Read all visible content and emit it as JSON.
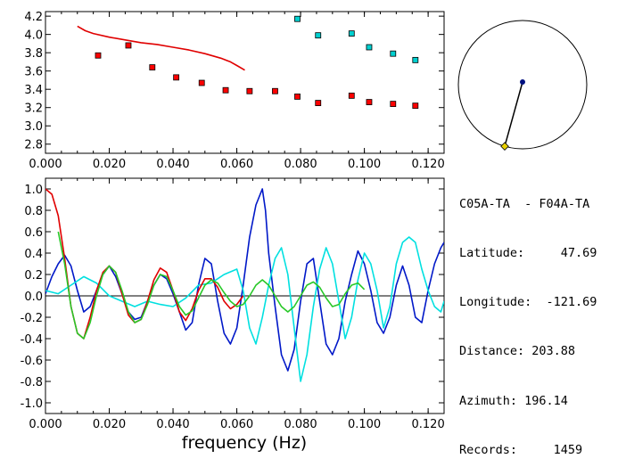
{
  "chart_data": [
    {
      "type": "scatter",
      "xlim": [
        0.0,
        0.125
      ],
      "ylim": [
        2.7,
        4.25
      ],
      "x_ticks": [
        "0.000",
        "0.020",
        "0.040",
        "0.060",
        "0.080",
        "0.100",
        "0.120"
      ],
      "y_ticks": [
        "4.2",
        "4.0",
        "3.8",
        "3.6",
        "3.4",
        "3.2",
        "3.0",
        "2.8"
      ],
      "series": [
        {
          "color": "#ff0000",
          "marker": "square",
          "x": [
            0.0165,
            0.026,
            0.0335,
            0.041,
            0.049,
            0.0565,
            0.064,
            0.072,
            0.079,
            0.0855,
            0.096,
            0.1015,
            0.109,
            0.116
          ],
          "y": [
            3.77,
            3.88,
            3.64,
            3.53,
            3.47,
            3.39,
            3.38,
            3.38,
            3.32,
            3.25,
            3.33,
            3.26,
            3.24,
            3.22
          ]
        },
        {
          "color": "#00d0d0",
          "marker": "square",
          "x": [
            0.079,
            0.0855,
            0.096,
            0.1015,
            0.109,
            0.116
          ],
          "y": [
            4.17,
            3.99,
            4.01,
            3.86,
            3.79,
            3.72
          ]
        },
        {
          "color": "#e00000",
          "marker": "line",
          "x": [
            0.01,
            0.0125,
            0.015,
            0.02,
            0.025,
            0.03,
            0.035,
            0.04,
            0.045,
            0.05,
            0.055,
            0.058,
            0.06,
            0.0625
          ],
          "y": [
            4.09,
            4.04,
            4.01,
            3.97,
            3.94,
            3.91,
            3.89,
            3.86,
            3.83,
            3.79,
            3.74,
            3.7,
            3.66,
            3.61
          ]
        }
      ]
    },
    {
      "type": "line",
      "xlim": [
        0.0,
        0.125
      ],
      "ylim": [
        -1.1,
        1.1
      ],
      "xlabel": "frequency (Hz)",
      "x_ticks": [
        "0.000",
        "0.020",
        "0.040",
        "0.060",
        "0.080",
        "0.100",
        "0.120"
      ],
      "y_ticks": [
        "1.0",
        "0.8",
        "0.6",
        "0.4",
        "0.2",
        "0.0",
        "-0.2",
        "-0.4",
        "-0.6",
        "-0.8",
        "-1.0"
      ],
      "series": [
        {
          "color": "#0018c8",
          "x": [
            0.0,
            0.002,
            0.004,
            0.006,
            0.008,
            0.01,
            0.012,
            0.014,
            0.016,
            0.018,
            0.02,
            0.022,
            0.024,
            0.026,
            0.028,
            0.03,
            0.032,
            0.034,
            0.036,
            0.038,
            0.04,
            0.042,
            0.044,
            0.046,
            0.048,
            0.05,
            0.052,
            0.054,
            0.056,
            0.058,
            0.06,
            0.062,
            0.064,
            0.066,
            0.068,
            0.069,
            0.07,
            0.072,
            0.074,
            0.076,
            0.078,
            0.08,
            0.082,
            0.084,
            0.086,
            0.088,
            0.09,
            0.092,
            0.094,
            0.096,
            0.098,
            0.1,
            0.102,
            0.104,
            0.106,
            0.108,
            0.11,
            0.112,
            0.114,
            0.116,
            0.118,
            0.12,
            0.122,
            0.124,
            0.125
          ],
          "y": [
            0.02,
            0.18,
            0.3,
            0.38,
            0.28,
            0.05,
            -0.15,
            -0.1,
            0.05,
            0.2,
            0.28,
            0.18,
            0.02,
            -0.15,
            -0.22,
            -0.2,
            -0.05,
            0.1,
            0.2,
            0.16,
            0.02,
            -0.15,
            -0.32,
            -0.25,
            0.1,
            0.35,
            0.3,
            -0.05,
            -0.35,
            -0.45,
            -0.3,
            0.1,
            0.55,
            0.85,
            1.0,
            0.8,
            0.4,
            -0.1,
            -0.55,
            -0.7,
            -0.5,
            -0.05,
            0.3,
            0.35,
            -0.05,
            -0.45,
            -0.55,
            -0.4,
            -0.05,
            0.2,
            0.42,
            0.3,
            0.05,
            -0.25,
            -0.35,
            -0.2,
            0.1,
            0.28,
            0.1,
            -0.2,
            -0.25,
            0.05,
            0.3,
            0.45,
            0.5
          ]
        },
        {
          "color": "#00e0e0",
          "x": [
            0.0,
            0.004,
            0.008,
            0.012,
            0.016,
            0.02,
            0.024,
            0.028,
            0.032,
            0.036,
            0.04,
            0.044,
            0.048,
            0.052,
            0.056,
            0.06,
            0.062,
            0.064,
            0.066,
            0.068,
            0.07,
            0.072,
            0.074,
            0.076,
            0.078,
            0.08,
            0.082,
            0.084,
            0.086,
            0.088,
            0.09,
            0.092,
            0.094,
            0.096,
            0.098,
            0.1,
            0.102,
            0.104,
            0.106,
            0.108,
            0.11,
            0.112,
            0.114,
            0.116,
            0.118,
            0.12,
            0.122,
            0.124,
            0.125
          ],
          "y": [
            0.05,
            0.02,
            0.1,
            0.18,
            0.12,
            0.0,
            -0.05,
            -0.1,
            -0.05,
            -0.08,
            -0.1,
            -0.02,
            0.1,
            0.12,
            0.2,
            0.25,
            0.05,
            -0.3,
            -0.45,
            -0.2,
            0.1,
            0.35,
            0.45,
            0.2,
            -0.3,
            -0.8,
            -0.55,
            -0.1,
            0.25,
            0.45,
            0.3,
            -0.05,
            -0.4,
            -0.2,
            0.15,
            0.4,
            0.3,
            0.05,
            -0.3,
            -0.1,
            0.3,
            0.5,
            0.55,
            0.5,
            0.25,
            0.05,
            -0.1,
            -0.15,
            -0.05
          ]
        },
        {
          "color": "#e00000",
          "x": [
            0.0,
            0.002,
            0.004,
            0.006,
            0.008,
            0.01,
            0.012,
            0.014,
            0.016,
            0.018,
            0.02,
            0.022,
            0.024,
            0.026,
            0.028,
            0.03,
            0.032,
            0.034,
            0.036,
            0.038,
            0.04,
            0.042,
            0.044,
            0.046,
            0.048,
            0.05,
            0.052,
            0.054,
            0.056,
            0.058,
            0.06,
            0.062
          ],
          "y": [
            1.0,
            0.95,
            0.75,
            0.35,
            -0.1,
            -0.35,
            -0.4,
            -0.2,
            0.05,
            0.22,
            0.28,
            0.22,
            0.02,
            -0.18,
            -0.25,
            -0.22,
            -0.05,
            0.15,
            0.26,
            0.22,
            0.05,
            -0.15,
            -0.23,
            -0.12,
            0.05,
            0.16,
            0.16,
            0.08,
            -0.05,
            -0.12,
            -0.08,
            0.0
          ]
        },
        {
          "color": "#28c828",
          "x": [
            0.004,
            0.006,
            0.008,
            0.01,
            0.012,
            0.014,
            0.016,
            0.018,
            0.02,
            0.022,
            0.024,
            0.026,
            0.028,
            0.03,
            0.032,
            0.034,
            0.036,
            0.038,
            0.04,
            0.042,
            0.044,
            0.046,
            0.048,
            0.05,
            0.052,
            0.054,
            0.056,
            0.058,
            0.06,
            0.062,
            0.064,
            0.066,
            0.068,
            0.07,
            0.072,
            0.074,
            0.076,
            0.078,
            0.08,
            0.082,
            0.084,
            0.086,
            0.088,
            0.09,
            0.092,
            0.094,
            0.096,
            0.098,
            0.1
          ],
          "y": [
            0.6,
            0.3,
            -0.1,
            -0.35,
            -0.4,
            -0.25,
            0.0,
            0.2,
            0.28,
            0.22,
            0.05,
            -0.15,
            -0.25,
            -0.22,
            -0.08,
            0.1,
            0.2,
            0.18,
            0.05,
            -0.1,
            -0.18,
            -0.14,
            -0.02,
            0.1,
            0.15,
            0.12,
            0.03,
            -0.05,
            -0.1,
            -0.08,
            0.0,
            0.1,
            0.15,
            0.1,
            0.0,
            -0.1,
            -0.15,
            -0.1,
            0.0,
            0.1,
            0.13,
            0.08,
            -0.02,
            -0.1,
            -0.08,
            0.02,
            0.1,
            0.12,
            0.06
          ]
        }
      ]
    }
  ],
  "inset": {
    "azimuth_deg": 196.14,
    "station_color": "#001080",
    "marker_color": "#e8d000"
  },
  "info": {
    "pair": "C05A-TA  - F04A-TA",
    "latitude": "Latitude:     47.69",
    "longitude": "Longitude:  -121.69",
    "distance": "Distance: 203.88",
    "azimuth": "Azimuth: 196.14",
    "records": "Records:     1459"
  }
}
